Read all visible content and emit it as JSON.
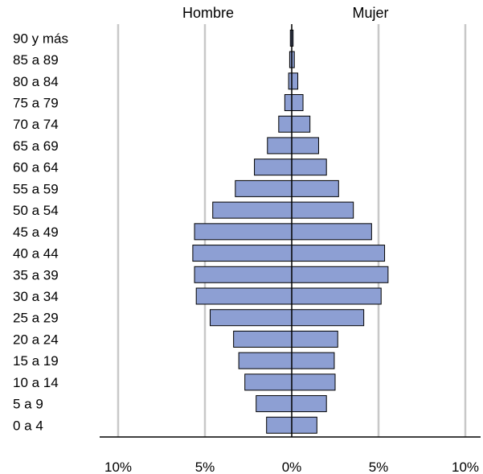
{
  "chart_data": {
    "type": "bar",
    "orientation": "horizontal",
    "subtype": "population-pyramid",
    "categories": [
      "90 y más",
      "85 a 89",
      "80 a 84",
      "75 a 79",
      "70 a 74",
      "65 a 69",
      "60 a 64",
      "55 a 59",
      "50 a 54",
      "45 a 49",
      "40 a 44",
      "35 a 39",
      "30 a 34",
      "25 a 29",
      "20 a 24",
      "15 a 19",
      "10 a 14",
      "5 a 9",
      "0 a 4"
    ],
    "series": [
      {
        "name": "Hombre",
        "side": "left",
        "values": [
          0.08,
          0.12,
          0.18,
          0.4,
          0.75,
          1.4,
          2.15,
          3.25,
          4.55,
          5.6,
          5.7,
          5.6,
          5.5,
          4.7,
          3.35,
          3.05,
          2.7,
          2.05,
          1.45
        ]
      },
      {
        "name": "Mujer",
        "side": "right",
        "values": [
          0.08,
          0.15,
          0.35,
          0.65,
          1.05,
          1.55,
          2.0,
          2.7,
          3.55,
          4.6,
          5.35,
          5.55,
          5.15,
          4.15,
          2.65,
          2.45,
          2.5,
          2.0,
          1.45
        ]
      }
    ],
    "xlim": [
      -10,
      10
    ],
    "x_ticks": [
      "10%",
      "5%",
      "0%",
      "5%",
      "10%"
    ],
    "x_tick_values": [
      -10,
      -5,
      0,
      5,
      10
    ],
    "grid": "vertical",
    "bar_color": "#8d9fd3",
    "bar_edge": "#000000"
  }
}
